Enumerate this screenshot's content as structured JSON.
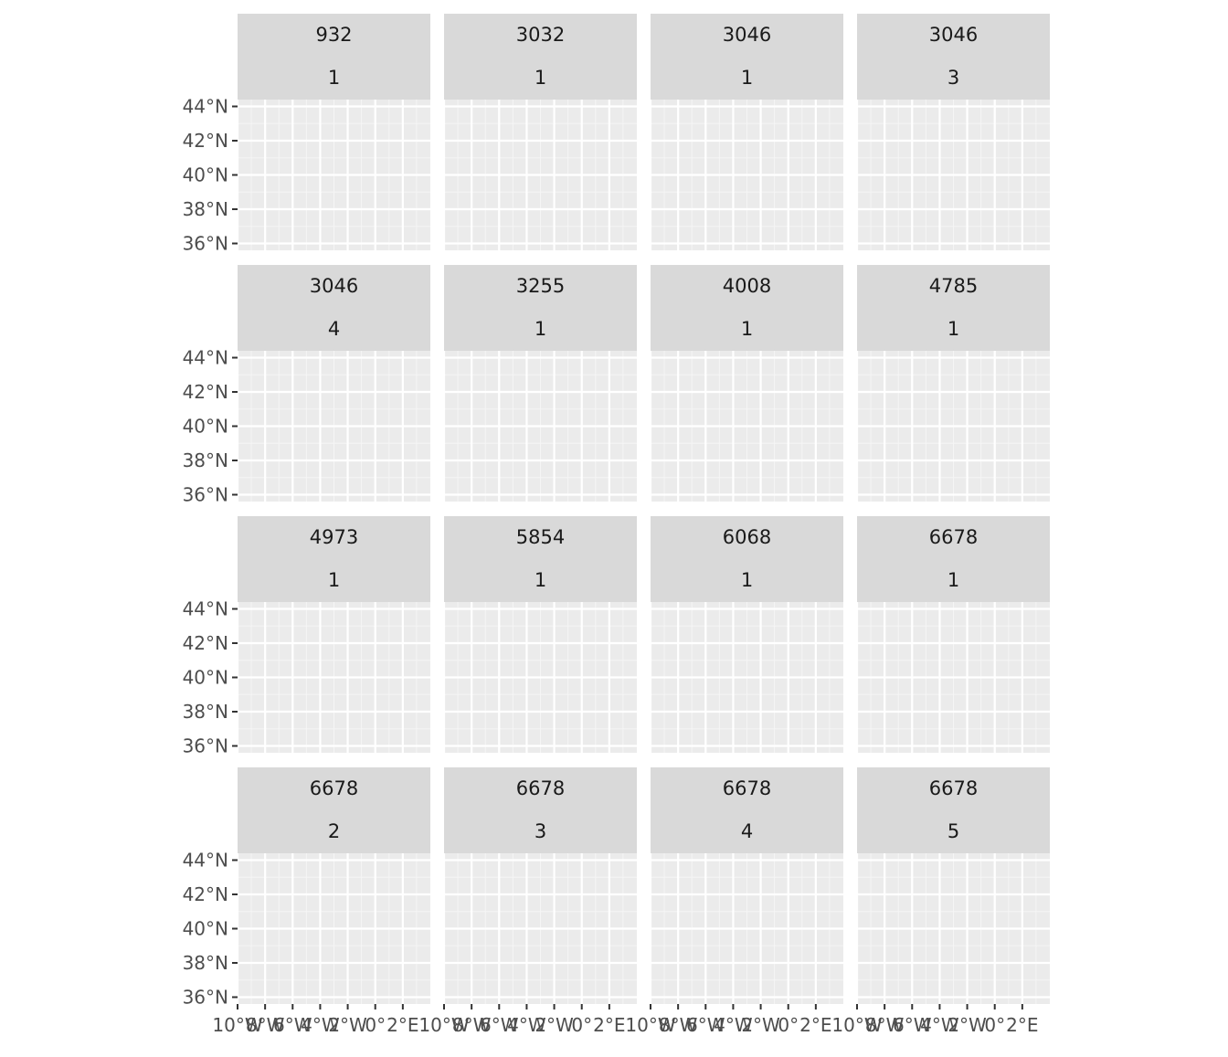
{
  "figure": {
    "type": "faceted-map",
    "fill_color": "#00008b",
    "outline_color": "#5a5a5a",
    "panel_background": "#ebebeb",
    "strip_background": "#d9d9d9",
    "grid": true,
    "lon_range": [
      -10,
      4
    ],
    "lat_range": [
      35.6,
      44.4
    ],
    "x_ticks": [
      {
        "value": -10,
        "label": "10°W"
      },
      {
        "value": -8,
        "label": "8°W"
      },
      {
        "value": -6,
        "label": "6°W"
      },
      {
        "value": -4,
        "label": "4°W"
      },
      {
        "value": -2,
        "label": "2°W"
      },
      {
        "value": 0,
        "label": "0°"
      },
      {
        "value": 2,
        "label": "2°E"
      }
    ],
    "y_ticks": [
      {
        "value": 44,
        "label": "44°N"
      },
      {
        "value": 42,
        "label": "42°N"
      },
      {
        "value": 40,
        "label": "40°N"
      },
      {
        "value": 38,
        "label": "38°N"
      },
      {
        "value": 36,
        "label": "36°N"
      }
    ]
  },
  "panels": [
    {
      "strip": [
        "932",
        "1"
      ]
    },
    {
      "strip": [
        "3032",
        "1"
      ]
    },
    {
      "strip": [
        "3046",
        "1"
      ]
    },
    {
      "strip": [
        "3046",
        "3"
      ]
    },
    {
      "strip": [
        "3046",
        "4"
      ]
    },
    {
      "strip": [
        "3255",
        "1"
      ]
    },
    {
      "strip": [
        "4008",
        "1"
      ]
    },
    {
      "strip": [
        "4785",
        "1"
      ]
    },
    {
      "strip": [
        "4973",
        "1"
      ]
    },
    {
      "strip": [
        "5854",
        "1"
      ]
    },
    {
      "strip": [
        "6068",
        "1"
      ]
    },
    {
      "strip": [
        "6678",
        "1"
      ]
    },
    {
      "strip": [
        "6678",
        "2"
      ]
    },
    {
      "strip": [
        "6678",
        "3"
      ]
    },
    {
      "strip": [
        "6678",
        "4"
      ]
    },
    {
      "strip": [
        "6678",
        "5"
      ]
    }
  ]
}
